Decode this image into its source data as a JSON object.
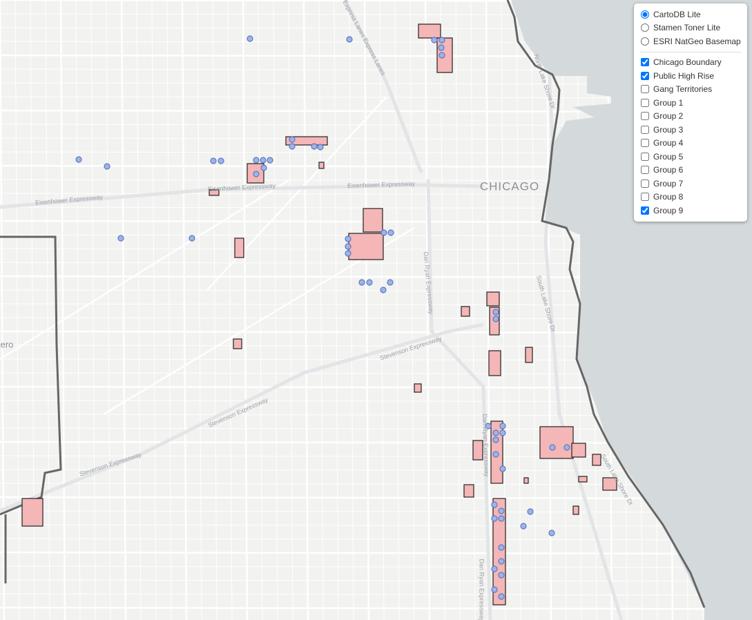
{
  "layer_control": {
    "base_layers": [
      {
        "label": "CartoDB Lite",
        "selected": true
      },
      {
        "label": "Stamen Toner Lite",
        "selected": false
      },
      {
        "label": "ESRI NatGeo Basemap",
        "selected": false
      }
    ],
    "overlays": [
      {
        "label": "Chicago Boundary",
        "checked": true
      },
      {
        "label": "Public High Rise",
        "checked": true
      },
      {
        "label": "Gang Territories",
        "checked": false
      },
      {
        "label": "Group 1",
        "checked": false
      },
      {
        "label": "Group 2",
        "checked": false
      },
      {
        "label": "Group 3",
        "checked": false
      },
      {
        "label": "Group 4",
        "checked": false
      },
      {
        "label": "Group 5",
        "checked": false
      },
      {
        "label": "Group 6",
        "checked": false
      },
      {
        "label": "Group 7",
        "checked": false
      },
      {
        "label": "Group 8",
        "checked": false
      },
      {
        "label": "Group 9",
        "checked": true
      }
    ]
  },
  "map_labels": [
    "CHICAGO",
    "Eisenhower Expressway",
    "Eisenhower Expressway",
    "Eisenhower Expressway",
    "Stevenson Expressway",
    "Stevenson Expressway",
    "Stevenson Expressway",
    "Dan Ryan Expressway",
    "Dan Ryan Expressway",
    "Dan Ryan Expressway",
    "Express Lanes Express Lanes",
    "South Lake Shore Dr",
    "South Lake Shore Dr",
    "North Lake Shore Dr",
    "ero"
  ]
}
